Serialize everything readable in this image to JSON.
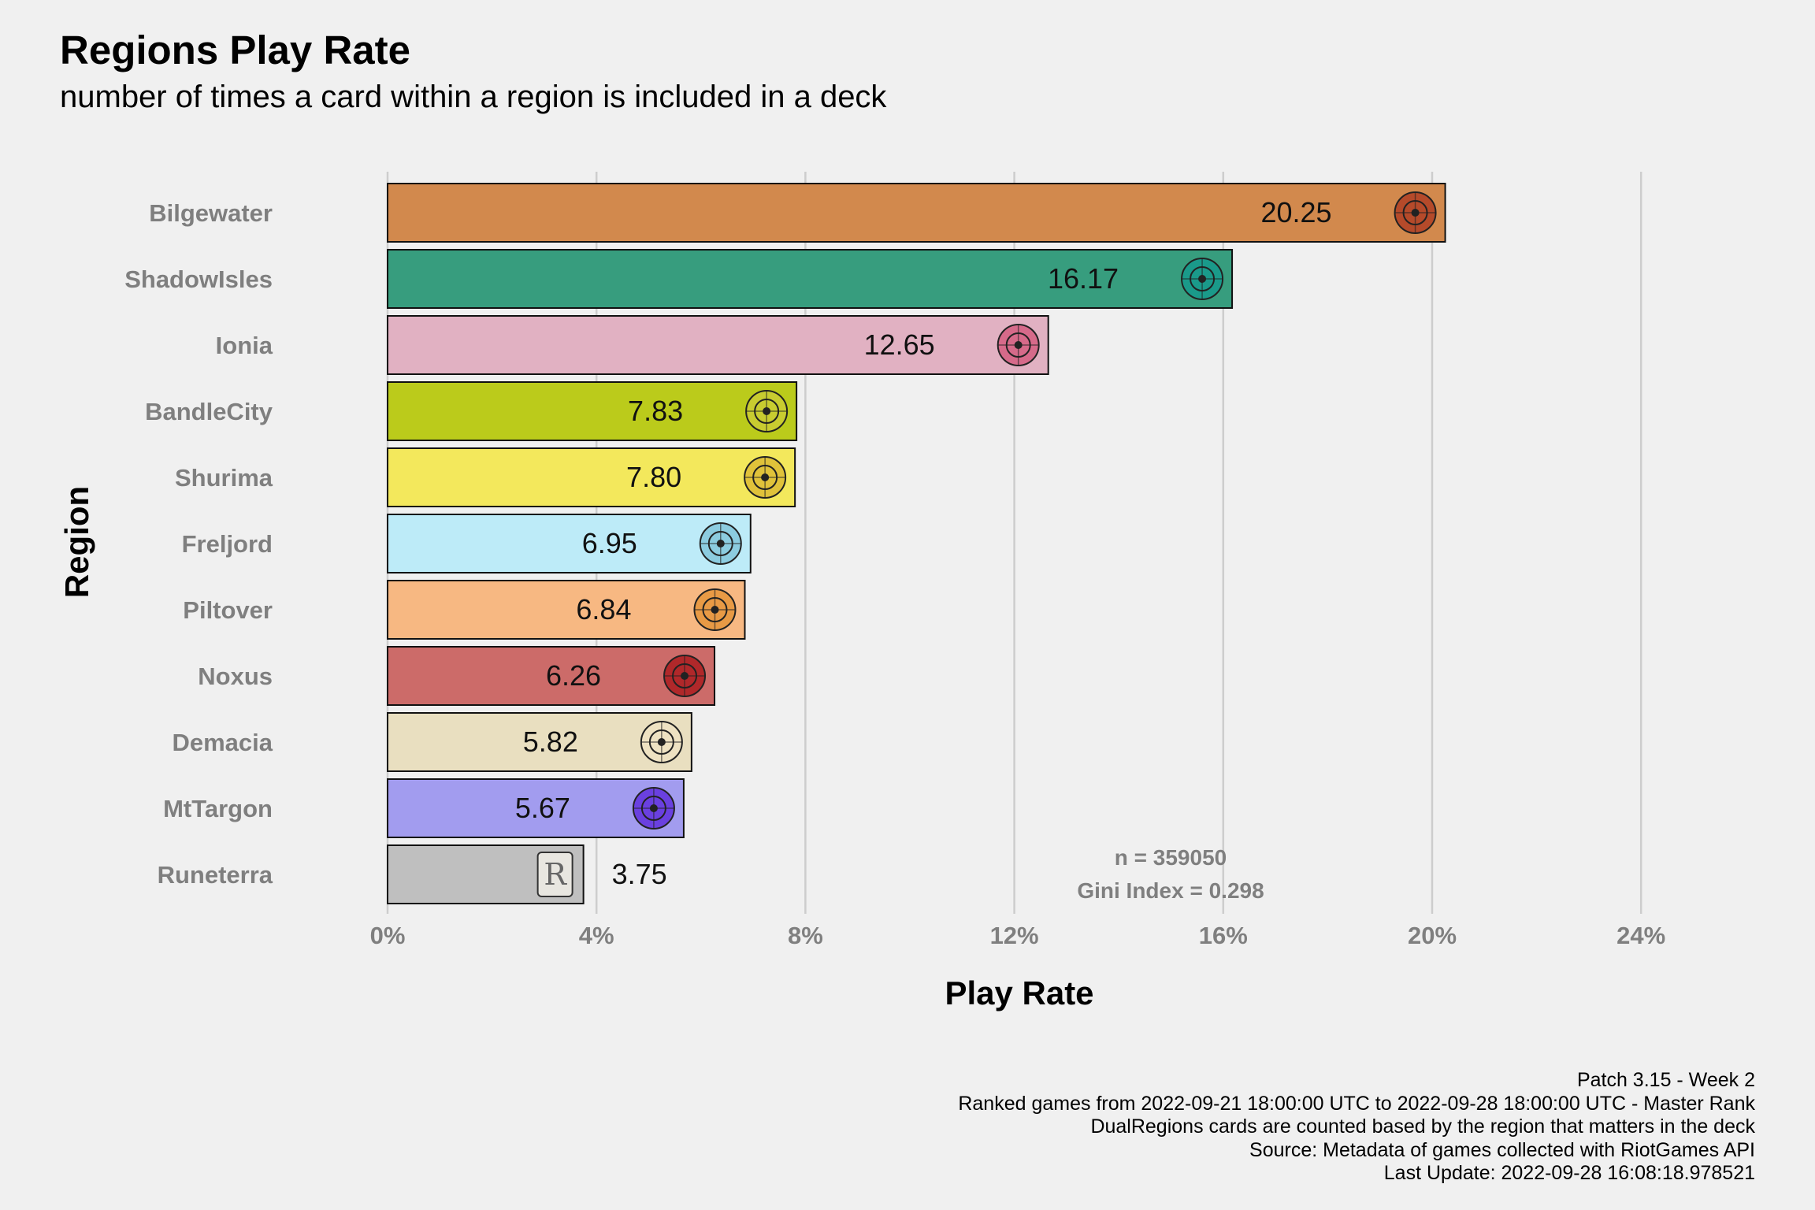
{
  "chart_data": {
    "type": "bar",
    "orientation": "horizontal",
    "title": "Regions Play Rate",
    "subtitle": "number of times a card within a region is included in a deck",
    "xlabel": "Play Rate",
    "ylabel": "Region",
    "xlim": [
      0,
      24.5
    ],
    "x_ticks": [
      "0%",
      "4%",
      "8%",
      "12%",
      "16%",
      "20%",
      "24%"
    ],
    "categories": [
      "Bilgewater",
      "ShadowIsles",
      "Ionia",
      "BandleCity",
      "Shurima",
      "Freljord",
      "Piltover",
      "Noxus",
      "Demacia",
      "MtTargon",
      "Runeterra"
    ],
    "values": [
      20.25,
      16.17,
      12.65,
      7.83,
      7.8,
      6.95,
      6.84,
      6.26,
      5.82,
      5.67,
      3.75
    ],
    "value_labels": [
      "20.25",
      "16.17",
      "12.65",
      "7.83",
      "7.80",
      "6.95",
      "6.84",
      "6.26",
      "5.82",
      "5.67",
      "3.75"
    ],
    "colors": [
      "#d2894d",
      "#379d7e",
      "#e1b1c2",
      "#bbcb1b",
      "#f3e85c",
      "#bdebf8",
      "#f7b882",
      "#cc6b69",
      "#e9dfc0",
      "#a29cef",
      "#bfbfbf"
    ],
    "icon_colors": [
      "#b54a2a",
      "#1a9a8a",
      "#d66a8a",
      "#c8cc30",
      "#e0c23a",
      "#8ccce0",
      "#e89a45",
      "#b0282a",
      "#eee2c2",
      "#6a40e0",
      "#e8e6e0"
    ],
    "icons": [
      "bilgewater-icon",
      "shadowisles-icon",
      "ionia-icon",
      "bandlecity-icon",
      "shurima-icon",
      "freljord-icon",
      "piltover-icon",
      "noxus-icon",
      "demacia-icon",
      "mttargon-icon",
      "runeterra-icon"
    ],
    "annotation": [
      "n = 359050",
      "Gini Index = 0.298"
    ],
    "grid": "vertical-major",
    "legend": "none"
  },
  "caption": [
    "Patch 3.15 - Week 2",
    "Ranked games from 2022-09-21 18:00:00 UTC to 2022-09-28 18:00:00 UTC - Master Rank",
    "DualRegions cards are counted based by the region that matters in the deck",
    "Source: Metadata of games collected with RiotGames API",
    "Last Update: 2022-09-28 16:08:18.978521"
  ]
}
